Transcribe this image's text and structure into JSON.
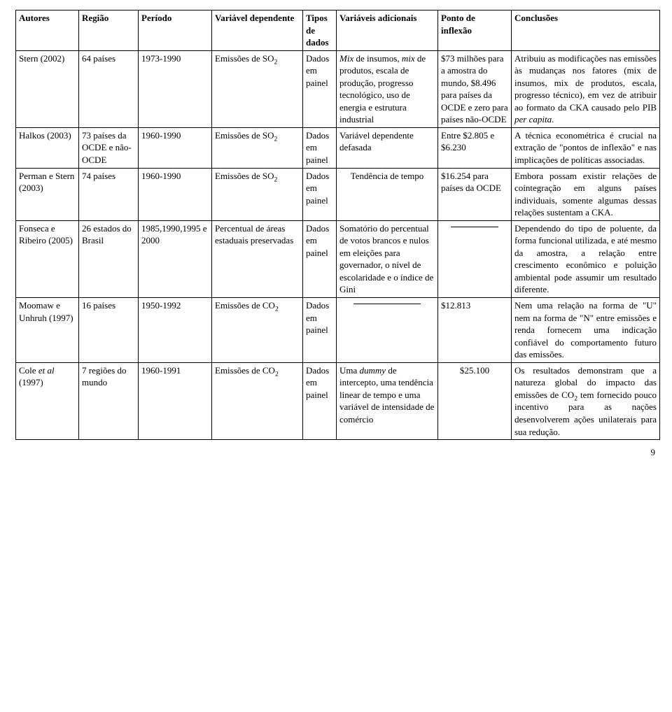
{
  "headers": {
    "autores": "Autores",
    "regiao": "Região",
    "periodo": "Período",
    "variavel_dep": "Variável dependente",
    "tipos": "Tipos de dados",
    "variaveis_adic": "Variáveis adicionais",
    "ponto": "Ponto de inflexão",
    "conclusoes": "Conclusões"
  },
  "rows": [
    {
      "autores": "Stern (2002)",
      "regiao": "64 países",
      "periodo": "1973-1990",
      "variavel_dep_pre": "Emissões de SO",
      "variavel_dep_sub": "2",
      "tipos": "Dados em painel",
      "variaveis_pre": "Mix",
      "variaveis_mid": " de insumos, ",
      "variaveis_it2": "mix",
      "variaveis_post": " de produtos, escala de produção, progresso tecnológico, uso de energia e estrutura industrial",
      "ponto": "$73 milhões para a amostra do mundo, $8.496 para países da OCDE e zero para países não-OCDE",
      "conclusoes_pre": "Atribuiu as modificações nas emissões às mudanças nos fatores (mix de insumos, mix de produtos, escala, progresso técnico), em vez de atribuir ao formato da CKA causado pelo PIB ",
      "conclusoes_it": "per capita",
      "conclusoes_post": "."
    },
    {
      "autores": "Halkos (2003)",
      "regiao": "73 países da OCDE e não-OCDE",
      "periodo": "1960-1990",
      "variavel_dep_pre": "Emissões de SO",
      "variavel_dep_sub": "2",
      "tipos": "Dados em painel",
      "variaveis": "Variável dependente defasada",
      "ponto": "Entre $2.805 e $6.230",
      "conclusoes": "A técnica econométrica é crucial na extração de \"pontos de inflexão\" e nas implicações de políticas associadas."
    },
    {
      "autores": "Perman e Stern (2003)",
      "regiao": "74 países",
      "periodo": "1960-1990",
      "variavel_dep_pre": "Emissões de SO",
      "variavel_dep_sub": "2",
      "tipos": "Dados em painel",
      "variaveis": "Tendência de tempo",
      "ponto": "$16.254 para países da OCDE",
      "conclusoes": "Embora possam existir relações de cointegração em alguns países individuais, somente algumas dessas relações sustentam a CKA."
    },
    {
      "autores": "Fonseca e Ribeiro (2005)",
      "regiao": "26 estados do Brasil",
      "periodo": "1985,1990,1995 e 2000",
      "variavel_dep": "Percentual de áreas estaduais preservadas",
      "tipos": "Dados em painel",
      "variaveis": "Somatório do percentual de votos brancos e nulos em eleições para governador, o nível de escolaridade e o índice de Gini",
      "ponto_blank": true,
      "conclusoes": "Dependendo do tipo de poluente, da forma funcional utilizada, e até mesmo da amostra, a relação entre crescimento econômico e poluição ambiental pode assumir um resultado diferente."
    },
    {
      "autores": "Moomaw e Unhruh (1997)",
      "regiao": "16 países",
      "periodo": "1950-1992",
      "variavel_dep_pre": "Emissões de CO",
      "variavel_dep_sub": "2",
      "tipos": "Dados em painel",
      "variaveis_blank": true,
      "ponto": "$12.813",
      "conclusoes": "Nem uma relação na forma de \"U\" nem na forma de \"N\" entre emissões e renda fornecem uma indicação confiável do comportamento futuro das emissões."
    },
    {
      "autores_pre": "Cole ",
      "autores_it": "et al",
      "autores_post": " (1997)",
      "regiao": "7 regiões do mundo",
      "periodo": "1960-1991",
      "variavel_dep_pre": "Emissões de CO",
      "variavel_dep_sub": "2",
      "tipos": "Dados em painel",
      "variaveis_pre2": "Uma ",
      "variaveis_it3": "dummy",
      "variaveis_post2": " de intercepto, uma tendência linear de tempo e uma variável de intensidade de comércio",
      "ponto": "$25.100",
      "conclusoes_pre2": "Os resultados demonstram que a natureza global do impacto das emissões de CO",
      "conclusoes_sub": "2",
      "conclusoes_post2": " tem fornecido pouco incentivo para as nações desenvolverem ações unilaterais para sua redução."
    }
  ],
  "page_number": "9"
}
